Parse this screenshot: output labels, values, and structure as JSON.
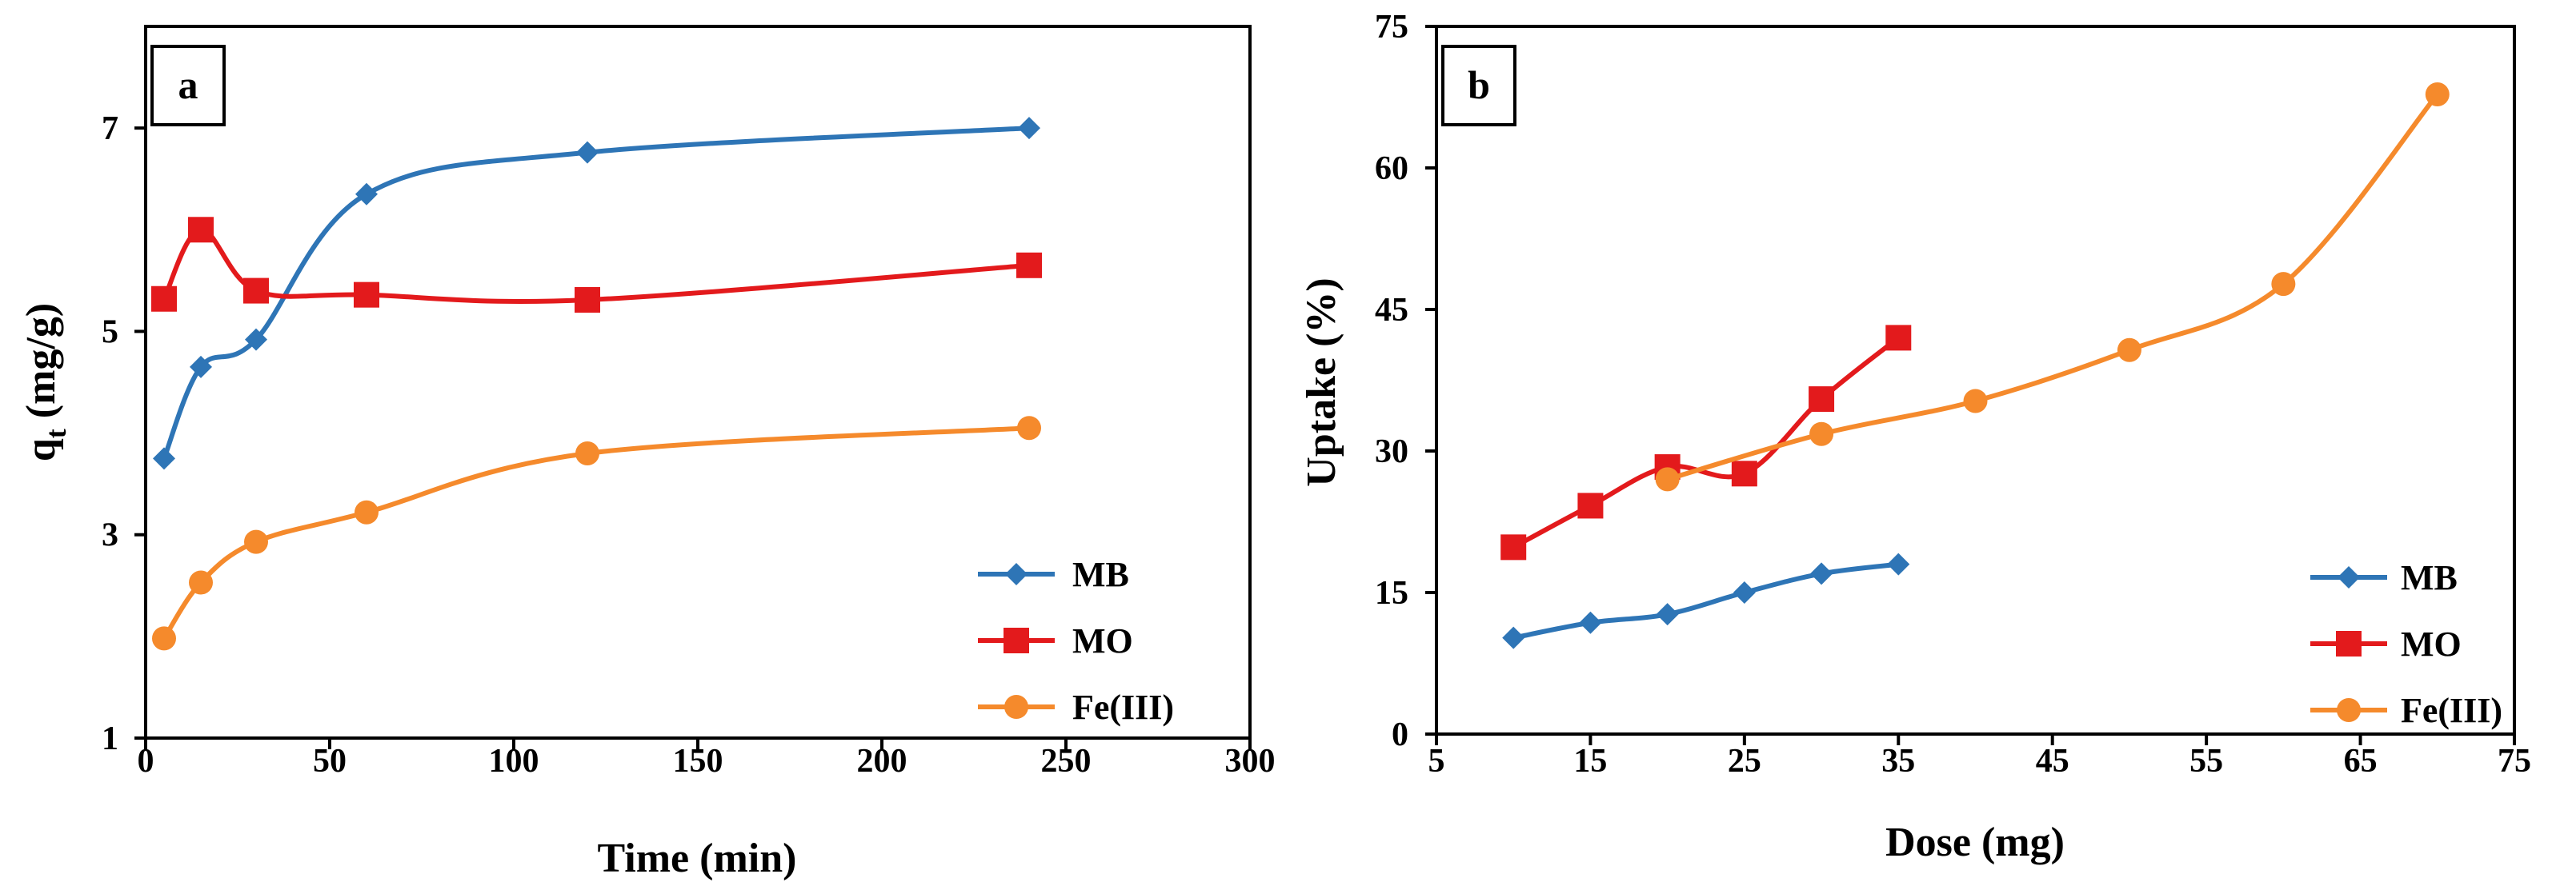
{
  "chart_data": [
    {
      "type": "line",
      "panel_label": "a",
      "xlabel": "Time (min)",
      "ylabel_main": "q",
      "ylabel_sub": "t",
      "ylabel_tail": " (mg/g)",
      "xlim": [
        0,
        300
      ],
      "ylim": [
        1,
        8
      ],
      "xticks": [
        0,
        50,
        100,
        150,
        200,
        250,
        300
      ],
      "yticks": [
        1,
        3,
        5,
        7
      ],
      "legend_position": "bottom-right",
      "series": [
        {
          "name": "MB",
          "color": "#2E75B6",
          "marker": "diamond",
          "x": [
            5,
            15,
            30,
            60,
            120,
            240
          ],
          "y": [
            3.75,
            4.65,
            4.92,
            6.35,
            6.76,
            7.0
          ]
        },
        {
          "name": "MO",
          "color": "#E31A1C",
          "marker": "square",
          "x": [
            5,
            15,
            30,
            60,
            120,
            240
          ],
          "y": [
            5.32,
            6.0,
            5.4,
            5.36,
            5.31,
            5.65
          ]
        },
        {
          "name": "Fe(III)",
          "color": "#F58A2C",
          "marker": "circle",
          "x": [
            5,
            15,
            30,
            60,
            120,
            240
          ],
          "y": [
            1.98,
            2.53,
            2.93,
            3.22,
            3.8,
            4.05
          ]
        }
      ]
    },
    {
      "type": "line",
      "panel_label": "b",
      "xlabel": "Dose (mg)",
      "ylabel": "Uptake (%)",
      "xlim": [
        5,
        75
      ],
      "ylim": [
        0,
        75
      ],
      "xticks": [
        5,
        15,
        25,
        35,
        45,
        55,
        65,
        75
      ],
      "yticks": [
        0,
        15,
        30,
        45,
        60,
        75
      ],
      "legend_position": "bottom-right",
      "series": [
        {
          "name": "MB",
          "color": "#2E75B6",
          "marker": "diamond",
          "x": [
            10,
            15,
            20,
            25,
            30,
            35
          ],
          "y": [
            10.2,
            11.8,
            12.7,
            15.0,
            17.0,
            18.0
          ]
        },
        {
          "name": "MO",
          "color": "#E31A1C",
          "marker": "square",
          "x": [
            10,
            15,
            20,
            25,
            30,
            35
          ],
          "y": [
            19.8,
            24.2,
            28.3,
            27.6,
            35.5,
            42.0
          ]
        },
        {
          "name": "Fe(III)",
          "color": "#F58A2C",
          "marker": "circle",
          "x": [
            20,
            30,
            40,
            50,
            60,
            70
          ],
          "y": [
            27.0,
            31.8,
            35.3,
            40.7,
            47.7,
            67.8
          ]
        }
      ]
    }
  ]
}
